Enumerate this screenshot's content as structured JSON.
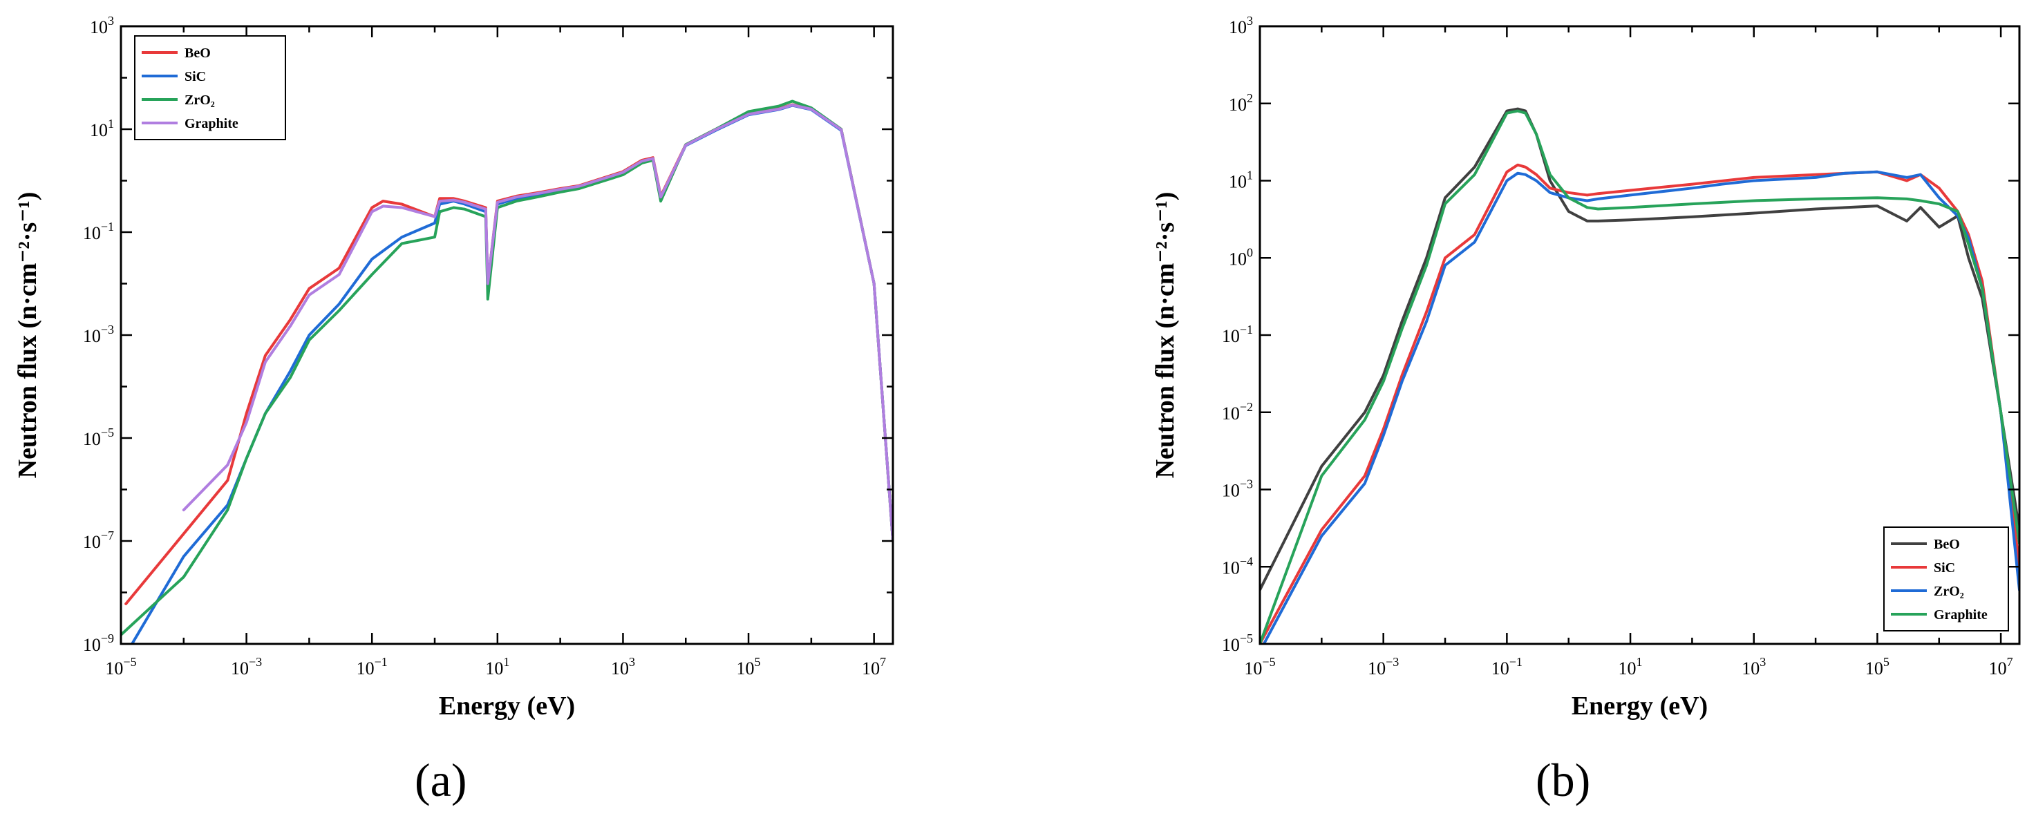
{
  "figure": {
    "panel_labels": [
      "(a)",
      "(b)"
    ]
  },
  "colors": {
    "red": "#e8393a",
    "blue": "#1f6bd6",
    "green": "#27a35a",
    "purple": "#b07ee0",
    "dark": "#404040"
  },
  "chart_data": [
    {
      "type": "line",
      "panel": "(a)",
      "xlabel": "Energy (eV)",
      "ylabel": "Neutron flux (n·cm⁻²·s⁻¹)",
      "xscale": "log",
      "yscale": "log",
      "xlim": [
        1e-05,
        20000000.0
      ],
      "ylim": [
        1e-09,
        1000.0
      ],
      "x_tick_exponents": [
        -5,
        -3,
        -1,
        1,
        3,
        5,
        7
      ],
      "y_tick_exponents": [
        -9,
        -7,
        -5,
        -3,
        -1,
        1,
        3
      ],
      "legend": "top-left",
      "grid": false,
      "series": [
        {
          "name": "BeO",
          "color_key": "red",
          "x": [
            1.2e-05,
            0.0005,
            0.001,
            0.002,
            0.005,
            0.01,
            0.03,
            0.1,
            0.15,
            0.3,
            1,
            1.2,
            2,
            3,
            6.5,
            7,
            10,
            20,
            50,
            100,
            200,
            1000,
            2000,
            3000,
            4000,
            10000.0,
            30000.0,
            100000.0,
            300000.0,
            500000.0,
            1000000.0,
            3000000.0,
            10000000.0,
            20000000.0
          ],
          "y": [
            6e-09,
            1.5e-06,
            3e-05,
            0.0004,
            0.002,
            0.008,
            0.02,
            0.3,
            0.4,
            0.35,
            0.2,
            0.45,
            0.45,
            0.4,
            0.3,
            0.01,
            0.4,
            0.5,
            0.6,
            0.7,
            0.8,
            1.5,
            2.5,
            2.8,
            0.5,
            5,
            10,
            20,
            25,
            30,
            25,
            10,
            0.01,
            1e-07
          ]
        },
        {
          "name": "SiC",
          "color_key": "blue",
          "x": [
            1.5e-05,
            0.0001,
            0.0005,
            0.001,
            0.002,
            0.005,
            0.01,
            0.03,
            0.1,
            0.3,
            1,
            1.2,
            2,
            3,
            6.5,
            7,
            10,
            20,
            50,
            100,
            200,
            1000,
            2000,
            3000,
            4000,
            10000.0,
            30000.0,
            100000.0,
            300000.0,
            500000.0,
            1000000.0,
            3000000.0,
            10000000.0,
            20000000.0
          ],
          "y": [
            1e-09,
            5e-08,
            5e-07,
            4e-06,
            3e-05,
            0.0002,
            0.001,
            0.004,
            0.03,
            0.08,
            0.15,
            0.35,
            0.4,
            0.35,
            0.25,
            0.01,
            0.35,
            0.45,
            0.55,
            0.65,
            0.75,
            1.4,
            2.3,
            2.6,
            0.45,
            4.8,
            9.5,
            19,
            24,
            29,
            24,
            9.5,
            0.01,
            1e-07
          ]
        },
        {
          "name": "ZrO₂",
          "color_key": "green",
          "x": [
            1e-05,
            0.0001,
            0.0005,
            0.001,
            0.002,
            0.005,
            0.01,
            0.03,
            0.1,
            0.3,
            1,
            1.2,
            2,
            3,
            6.5,
            7,
            10,
            20,
            50,
            100,
            200,
            1000,
            2000,
            3000,
            4000,
            10000.0,
            30000.0,
            100000.0,
            300000.0,
            500000.0,
            1000000.0,
            3000000.0,
            10000000.0,
            20000000.0
          ],
          "y": [
            1.5e-09,
            2e-08,
            4e-07,
            4e-06,
            3e-05,
            0.00015,
            0.0008,
            0.003,
            0.015,
            0.06,
            0.08,
            0.25,
            0.3,
            0.28,
            0.2,
            0.005,
            0.3,
            0.4,
            0.5,
            0.6,
            0.7,
            1.3,
            2.2,
            2.5,
            0.4,
            5,
            10,
            22,
            28,
            35,
            26,
            10,
            0.01,
            1e-07
          ]
        },
        {
          "name": "Graphite",
          "color_key": "purple",
          "x": [
            0.0001,
            0.0005,
            0.001,
            0.002,
            0.005,
            0.01,
            0.03,
            0.1,
            0.15,
            0.3,
            1,
            1.2,
            2,
            3,
            6.5,
            7,
            10,
            20,
            50,
            100,
            200,
            1000,
            2000,
            3000,
            4000,
            10000.0,
            30000.0,
            100000.0,
            300000.0,
            500000.0,
            1000000.0,
            3000000.0,
            10000000.0,
            20000000.0
          ],
          "y": [
            4e-07,
            3e-06,
            2e-05,
            0.0003,
            0.0015,
            0.006,
            0.015,
            0.25,
            0.32,
            0.3,
            0.2,
            0.4,
            0.42,
            0.38,
            0.28,
            0.01,
            0.38,
            0.48,
            0.58,
            0.68,
            0.78,
            1.45,
            2.4,
            2.7,
            0.48,
            4.9,
            9.8,
            19.5,
            24.5,
            29.5,
            24.5,
            9.8,
            0.01,
            1e-07
          ]
        }
      ]
    },
    {
      "type": "line",
      "panel": "(b)",
      "xlabel": "Energy (eV)",
      "ylabel": "Neutron flux (n·cm⁻²·s⁻¹)",
      "xscale": "log",
      "yscale": "log",
      "xlim": [
        1e-05,
        20000000.0
      ],
      "ylim": [
        1e-05,
        1000.0
      ],
      "x_tick_exponents": [
        -5,
        -3,
        -1,
        1,
        3,
        5,
        7
      ],
      "y_tick_exponents": [
        -5,
        -4,
        -3,
        -2,
        -1,
        0,
        1,
        2,
        3
      ],
      "legend": "bottom-right",
      "grid": false,
      "series": [
        {
          "name": "BeO",
          "color_key": "dark",
          "x": [
            1e-05,
            0.0001,
            0.0005,
            0.001,
            0.002,
            0.005,
            0.01,
            0.03,
            0.1,
            0.15,
            0.2,
            0.3,
            0.5,
            1,
            2,
            3,
            10,
            100,
            1000,
            10000.0,
            100000.0,
            300000.0,
            500000.0,
            1000000.0,
            2000000.0,
            3000000.0,
            5000000.0,
            10000000.0,
            20000000.0
          ],
          "y": [
            5e-05,
            0.002,
            0.01,
            0.03,
            0.15,
            1,
            6,
            15,
            80,
            85,
            80,
            40,
            10,
            4,
            3,
            3,
            3.1,
            3.4,
            3.8,
            4.3,
            4.7,
            3,
            4.5,
            2.5,
            3.5,
            1,
            0.3,
            0.01,
            0.0003
          ]
        },
        {
          "name": "SiC",
          "color_key": "red",
          "x": [
            1e-05,
            0.0001,
            0.0005,
            0.001,
            0.002,
            0.005,
            0.01,
            0.03,
            0.1,
            0.15,
            0.2,
            0.3,
            0.5,
            1,
            2,
            3,
            10,
            100,
            1000,
            10000.0,
            100000.0,
            300000.0,
            500000.0,
            1000000.0,
            2000000.0,
            3000000.0,
            5000000.0,
            10000000.0,
            20000000.0
          ],
          "y": [
            1e-05,
            0.0003,
            0.0015,
            0.006,
            0.03,
            0.2,
            1,
            2,
            13,
            16,
            15,
            12,
            8,
            7,
            6.5,
            6.8,
            7.5,
            9,
            11,
            12,
            13,
            10,
            12,
            8,
            4,
            2,
            0.5,
            0.01,
            0.0001
          ]
        },
        {
          "name": "ZrO₂",
          "color_key": "blue",
          "x": [
            1e-05,
            0.0001,
            0.0005,
            0.001,
            0.002,
            0.005,
            0.01,
            0.03,
            0.1,
            0.15,
            0.2,
            0.3,
            0.5,
            1,
            2,
            3,
            10,
            100,
            300,
            1000,
            10000.0,
            30000.0,
            100000.0,
            300000.0,
            500000.0,
            1000000.0,
            2000000.0,
            3000000.0,
            5000000.0,
            10000000.0,
            20000000.0
          ],
          "y": [
            8e-06,
            0.00025,
            0.0012,
            0.005,
            0.025,
            0.15,
            0.8,
            1.6,
            10,
            12.5,
            12,
            10,
            7,
            6,
            5.5,
            5.8,
            6.5,
            8,
            9,
            10,
            11,
            12.5,
            13,
            11,
            12,
            6,
            3.5,
            1.8,
            0.4,
            0.01,
            5e-05
          ]
        },
        {
          "name": "Graphite",
          "color_key": "green",
          "x": [
            1e-05,
            0.0001,
            0.0005,
            0.001,
            0.002,
            0.005,
            0.01,
            0.03,
            0.1,
            0.15,
            0.2,
            0.3,
            0.5,
            1,
            2,
            3,
            10,
            100,
            1000,
            10000.0,
            100000.0,
            300000.0,
            500000.0,
            1000000.0,
            2000000.0,
            3000000.0,
            5000000.0,
            10000000.0,
            20000000.0
          ],
          "y": [
            1e-05,
            0.0015,
            0.008,
            0.025,
            0.12,
            0.8,
            5,
            12,
            75,
            80,
            75,
            40,
            12,
            6,
            4.5,
            4.3,
            4.5,
            5,
            5.5,
            5.8,
            6,
            5.8,
            5.5,
            5,
            4,
            1.5,
            0.4,
            0.01,
            0.0002
          ]
        }
      ]
    }
  ]
}
